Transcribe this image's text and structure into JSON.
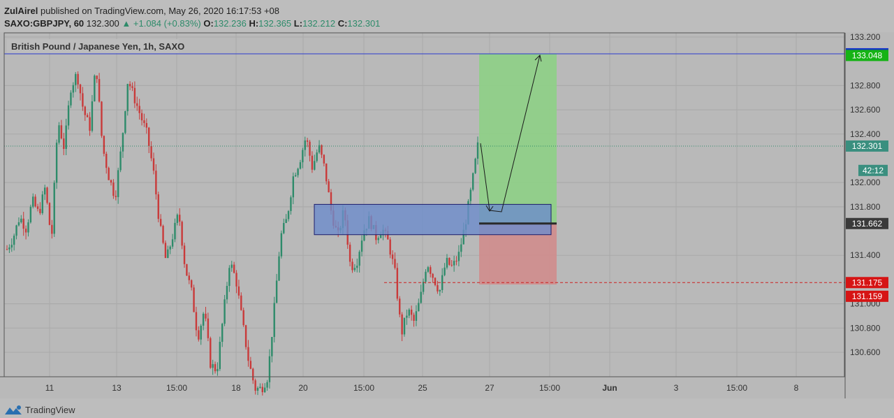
{
  "header": {
    "author": "ZulAirel",
    "published_text": "published on TradingView.com, May 26, 2020 16:17:53 +08",
    "symbol": "SAXO:GBPJPY, 60",
    "last": "132.300",
    "change": "▲ +1.084 (+0.83%)",
    "o_label": "O:",
    "o_val": "132.236",
    "h_label": "H:",
    "h_val": "132.365",
    "l_label": "L:",
    "l_val": "132.212",
    "c_label": "C:",
    "c_val": "132.301"
  },
  "footer": {
    "brand": "TradingView",
    "logo_icon": "tradingview-logo-icon"
  },
  "chart_data": {
    "type": "candlestick",
    "title": "British Pound / Japanese Yen, 1h, SAXO",
    "ylim": [
      130.38,
      133.2
    ],
    "y_ticks": [
      "133.200",
      "132.800",
      "132.600",
      "132.400",
      "132.000",
      "131.800",
      "131.400",
      "131.000",
      "130.800",
      "130.600"
    ],
    "x_ticks": [
      "11",
      "13",
      "15:00",
      "18",
      "20",
      "15:00",
      "25",
      "27",
      "15:00",
      "Jun",
      "3",
      "15:00",
      "8"
    ],
    "x_tick_bold": [
      false,
      false,
      false,
      false,
      false,
      false,
      false,
      false,
      false,
      true,
      false,
      false,
      false
    ],
    "series_path": [
      131.45,
      131.55,
      131.72,
      131.62,
      131.85,
      131.74,
      131.96,
      131.52,
      132.52,
      132.28,
      132.78,
      132.9,
      132.6,
      132.45,
      132.98,
      132.3,
      132.05,
      131.88,
      132.3,
      132.85,
      132.7,
      132.55,
      132.4,
      132.1,
      131.65,
      131.35,
      131.55,
      131.75,
      131.3,
      131.1,
      130.72,
      130.95,
      130.5,
      130.45,
      130.9,
      131.35,
      131.2,
      130.85,
      130.52,
      130.3,
      130.3,
      130.4,
      130.95,
      131.55,
      131.7,
      132.05,
      132.18,
      132.38,
      132.12,
      132.3,
      132.1,
      131.75,
      131.55,
      131.78,
      131.3,
      131.35,
      131.6,
      131.7,
      131.55,
      131.62,
      131.5,
      131.25,
      130.75,
      130.95,
      130.85,
      131.05,
      131.35,
      131.22,
      131.1,
      131.35,
      131.3,
      131.4,
      131.65,
      131.95,
      132.3
    ],
    "price_labels": [
      {
        "value": "133.062",
        "bg": "#1232c8",
        "price": 133.062
      },
      {
        "value": "133.048",
        "bg": "#15b315",
        "price": 133.048
      },
      {
        "value": "132.301",
        "bg": "#3a8f7f",
        "price": 132.301
      },
      {
        "value": "42:12",
        "bg": "#3a8f7f",
        "price": 132.1
      },
      {
        "value": "131.662",
        "bg": "#3a3a3a",
        "price": 131.662
      },
      {
        "value": "131.175",
        "bg": "#d61414",
        "price": 131.175
      },
      {
        "value": "131.159",
        "bg": "#d61414",
        "price": 131.062
      }
    ],
    "horizontal_lines": [
      {
        "price": 133.062,
        "color": "#2b3bd0",
        "style": "solid"
      },
      {
        "price": 132.301,
        "color": "#2e8b6a",
        "style": "dotted"
      },
      {
        "price": 131.175,
        "color": "#cc2020",
        "style": "dashed"
      }
    ],
    "zone_box": {
      "top": 131.82,
      "bottom": 131.57,
      "fill": "#6d8ccc",
      "stroke": "#1a1a6a"
    },
    "position": {
      "entry": 131.662,
      "target": 133.062,
      "stop": 131.159,
      "profit_fill": "#8fcf88",
      "loss_fill": "#cf8e8e"
    },
    "colors": {
      "up": "#2e8b6a",
      "down": "#c93a3a",
      "bg": "#b9b9b9",
      "grid": "#a9a9a9",
      "axis_text": "#333333"
    }
  }
}
